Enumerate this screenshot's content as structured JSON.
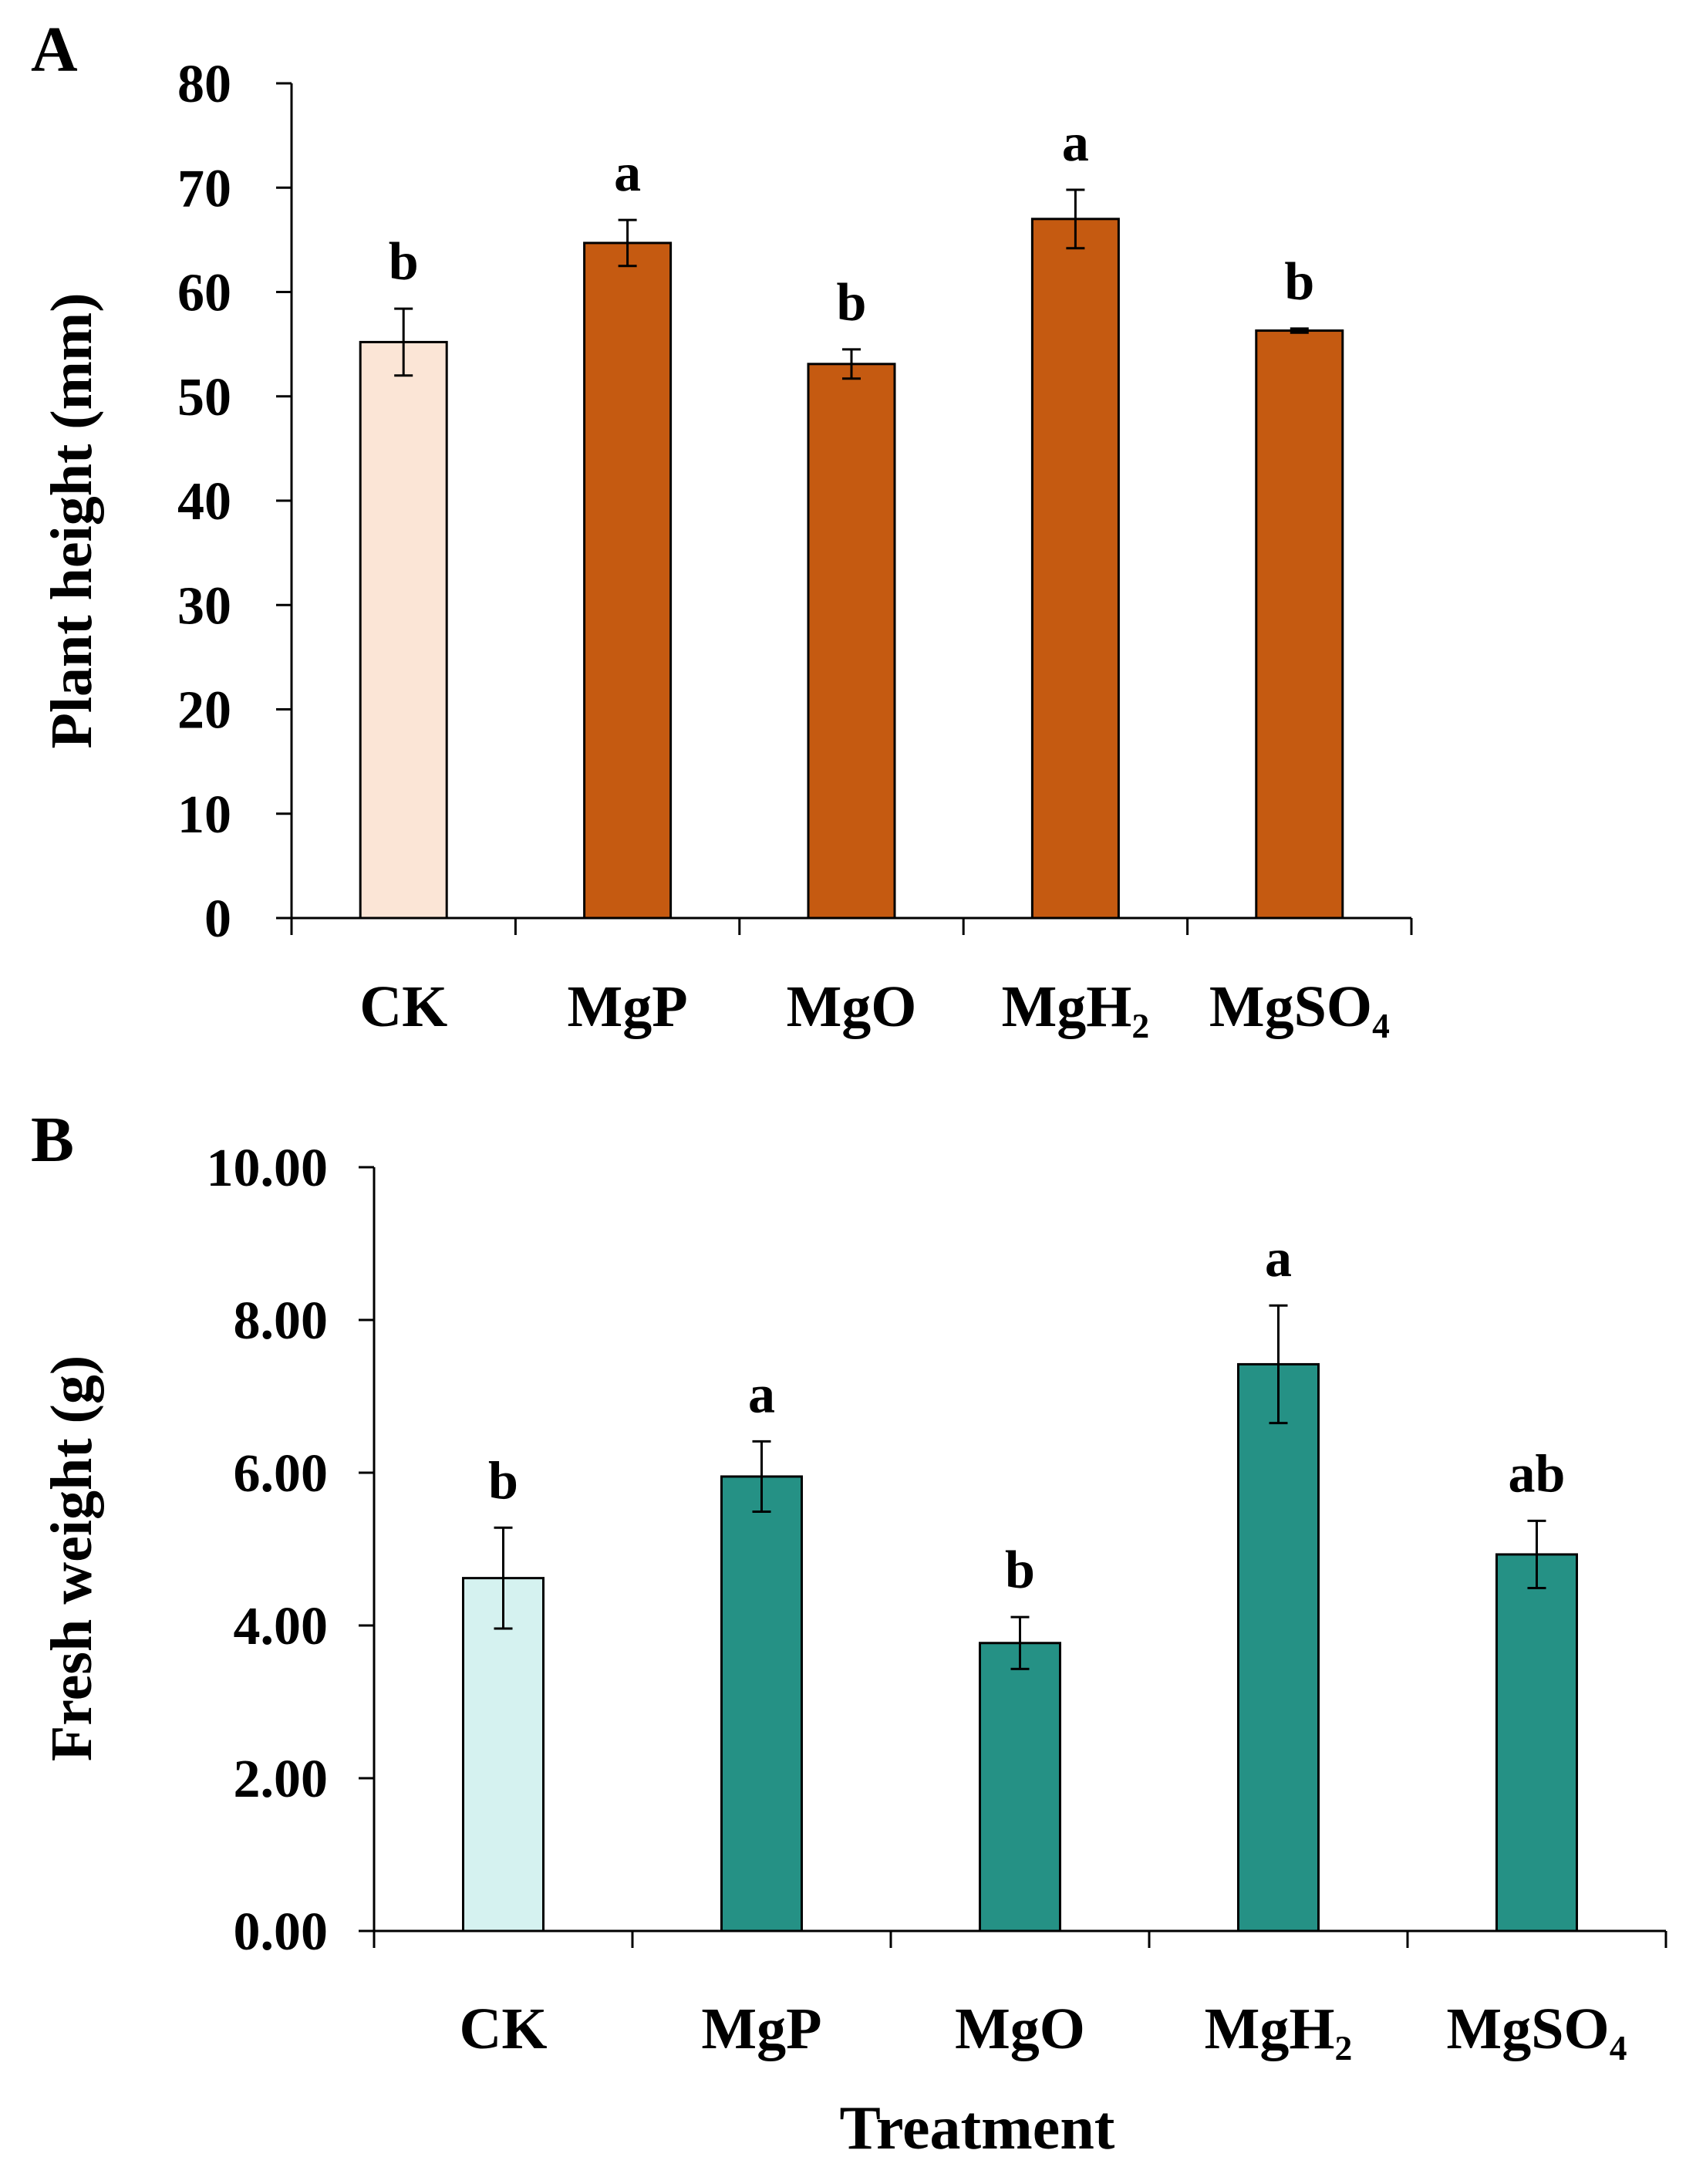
{
  "chart_data": [
    {
      "type": "bar",
      "panel_label": "A",
      "categories": [
        "CK",
        "MgP",
        "MgO",
        "MgH₂",
        "MgSO₄"
      ],
      "values": [
        55.2,
        64.7,
        53.1,
        67.0,
        56.3
      ],
      "errors": [
        3.2,
        2.2,
        1.4,
        2.8,
        0.2
      ],
      "significance": [
        "b",
        "a",
        "b",
        "a",
        "b"
      ],
      "xlabel": "",
      "ylabel": "Plant height (mm)",
      "ylim": [
        0,
        80
      ],
      "yticks": [
        "0",
        "10",
        "20",
        "30",
        "40",
        "50",
        "60",
        "70",
        "80"
      ],
      "colors": [
        "#FBE5D6",
        "#C55A11",
        "#C55A11",
        "#C55A11",
        "#C55A11"
      ],
      "grid": false,
      "legend": "none"
    },
    {
      "type": "bar",
      "panel_label": "B",
      "categories": [
        "CK",
        "MgP",
        "MgO",
        "MgH₂",
        "MgSO₄"
      ],
      "values": [
        4.62,
        5.95,
        3.77,
        7.42,
        4.93
      ],
      "errors": [
        0.66,
        0.46,
        0.34,
        0.77,
        0.44
      ],
      "significance": [
        "b",
        "a",
        "b",
        "a",
        "ab"
      ],
      "xlabel": "Treatment",
      "ylabel": "Fresh weight (g)",
      "ylim": [
        0,
        10
      ],
      "yticks": [
        "0.00",
        "2.00",
        "4.00",
        "6.00",
        "8.00",
        "10.00"
      ],
      "colors": [
        "#D5F2F0",
        "#259185",
        "#259185",
        "#259185",
        "#259185"
      ],
      "grid": false,
      "legend": "none"
    }
  ]
}
